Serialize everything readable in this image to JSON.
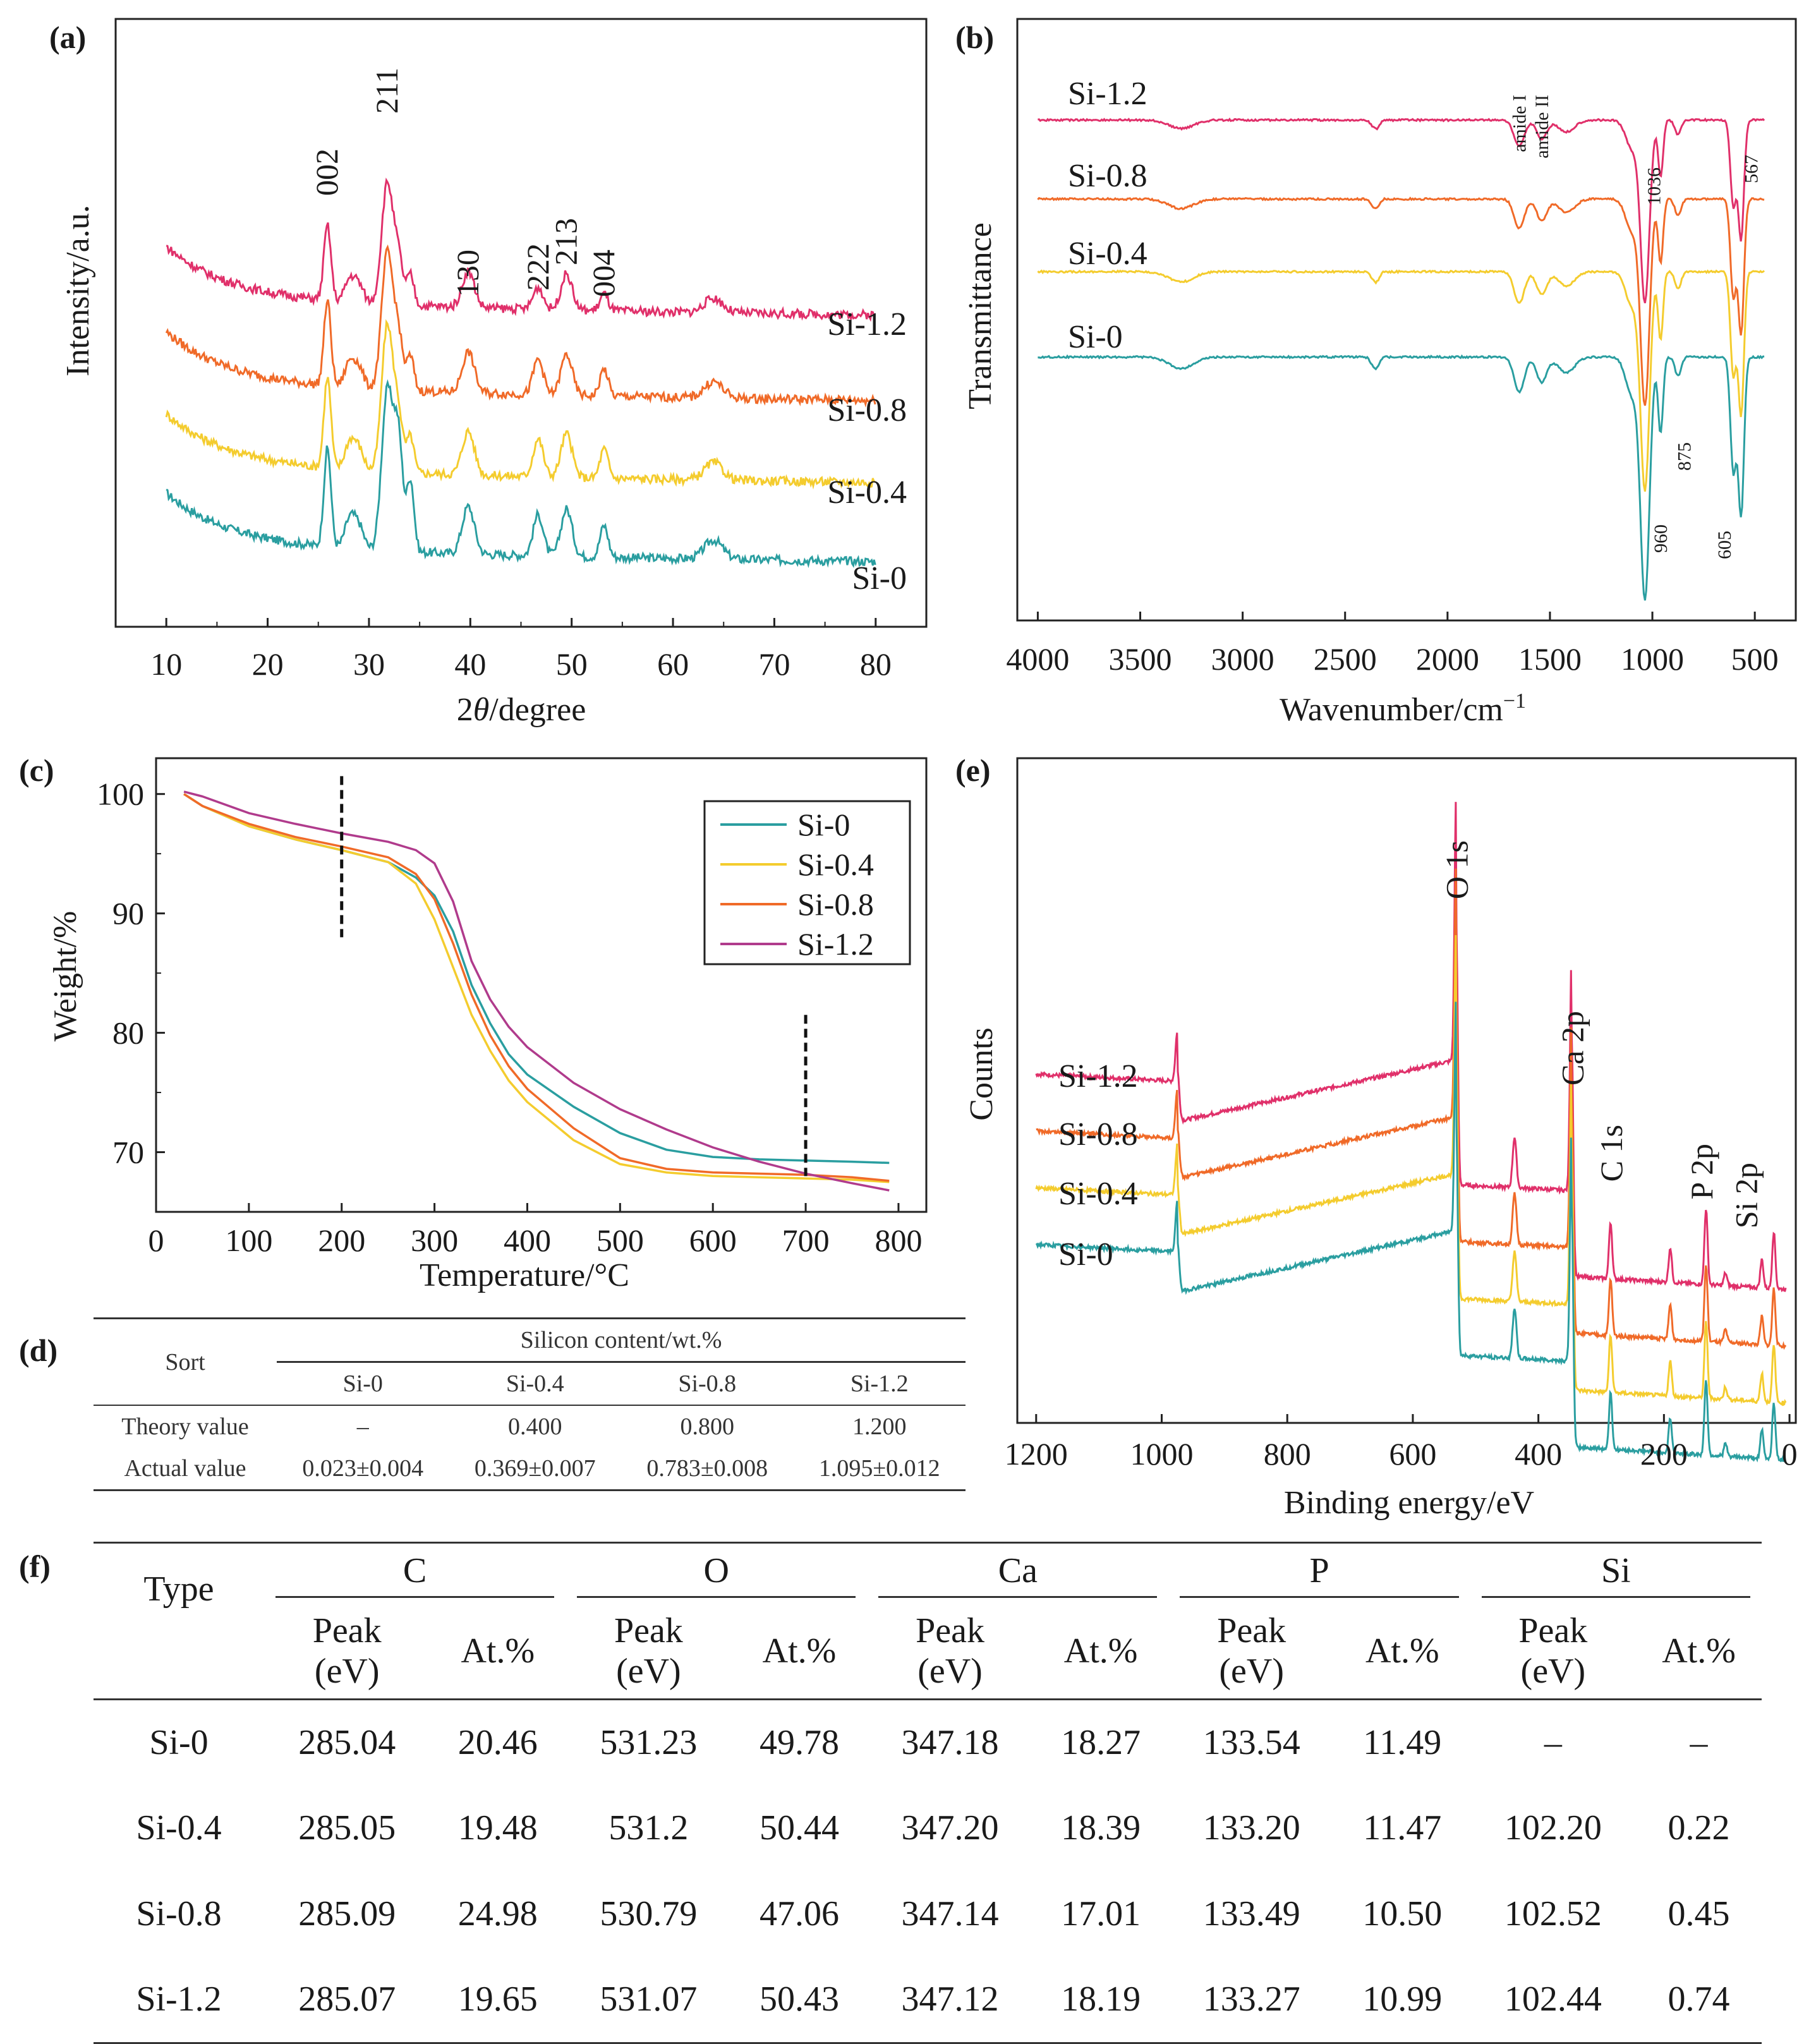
{
  "panel_labels": {
    "a": "(a)",
    "b": "(b)",
    "c": "(c)",
    "d": "(d)",
    "e": "(e)",
    "f": "(f)"
  },
  "colors": {
    "si0": "#2a9ea0",
    "si04": "#f4cc2e",
    "si08": "#f06a28",
    "si12": "#e0306a",
    "si12_tga": "#b03b8c"
  },
  "chart_data": [
    {
      "id": "a",
      "type": "line",
      "title": "",
      "xlabel": "2θ/degree",
      "xlabel_main": "2",
      "xlabel_italic": "θ",
      "xlabel_rest": "/degree",
      "ylabel": "Intensity/a.u.",
      "xlim": [
        5,
        85
      ],
      "xticks": [
        10,
        20,
        30,
        40,
        50,
        60,
        70,
        80
      ],
      "peak_positions": [
        25.9,
        31.8,
        39.8,
        46.7,
        49.5,
        53.2,
        64.0
      ],
      "peak_labels": [
        {
          "text": "002",
          "x": 25.9
        },
        {
          "text": "211",
          "x": 31.8
        },
        {
          "text": "130",
          "x": 39.8
        },
        {
          "text": "222",
          "x": 46.7
        },
        {
          "text": "213",
          "x": 49.5
        },
        {
          "text": "004",
          "x": 53.2
        }
      ],
      "series": [
        {
          "name": "Si-0",
          "color": "#2a9ea0"
        },
        {
          "name": "Si-0.4",
          "color": "#f4cc2e"
        },
        {
          "name": "Si-0.8",
          "color": "#f06a28"
        },
        {
          "name": "Si-1.2",
          "color": "#e0306a"
        }
      ]
    },
    {
      "id": "b",
      "type": "line",
      "xlabel": "Wavenumber/cm",
      "xlabel_sup": "−1",
      "ylabel": "Transmittance",
      "xlim": [
        4000,
        400
      ],
      "xticks": [
        4000,
        3500,
        3000,
        2500,
        2000,
        1500,
        1000,
        500
      ],
      "annotations": [
        {
          "text": "amide I",
          "x": 1650
        },
        {
          "text": "amide II",
          "x": 1540
        },
        {
          "text": "1036",
          "x": 1036
        },
        {
          "text": "567",
          "x": 567
        },
        {
          "text": "875",
          "x": 875
        },
        {
          "text": "960",
          "x": 960
        },
        {
          "text": "605",
          "x": 605
        }
      ],
      "series": [
        {
          "name": "Si-1.2",
          "color": "#e0306a"
        },
        {
          "name": "Si-0.8",
          "color": "#f06a28"
        },
        {
          "name": "Si-0.4",
          "color": "#f4cc2e"
        },
        {
          "name": "Si-0",
          "color": "#2a9ea0"
        }
      ]
    },
    {
      "id": "c",
      "type": "line",
      "xlabel": "Temperature/°C",
      "ylabel": "Weight/%",
      "xlim": [
        0,
        830
      ],
      "ylim": [
        65,
        103
      ],
      "xticks": [
        0,
        100,
        200,
        300,
        400,
        500,
        600,
        700,
        800
      ],
      "yticks": [
        70,
        80,
        90,
        100
      ],
      "vlines": [
        200,
        700
      ],
      "legend": "top-right",
      "series": [
        {
          "name": "Si-0",
          "color": "#2a9ea0",
          "x": [
            30,
            50,
            100,
            150,
            200,
            250,
            280,
            300,
            320,
            340,
            360,
            380,
            400,
            450,
            500,
            550,
            600,
            650,
            700,
            750,
            790
          ],
          "y": [
            100,
            99,
            97.3,
            96.2,
            95.3,
            94.3,
            93,
            91.5,
            88.5,
            84,
            80.8,
            78.2,
            76.5,
            73.8,
            71.6,
            70.2,
            69.6,
            69.4,
            69.3,
            69.2,
            69.1
          ]
        },
        {
          "name": "Si-0.4",
          "color": "#f4cc2e",
          "x": [
            30,
            50,
            100,
            150,
            200,
            250,
            280,
            300,
            320,
            340,
            360,
            380,
            400,
            450,
            500,
            550,
            600,
            650,
            700,
            750,
            790
          ],
          "y": [
            100,
            99,
            97.3,
            96.2,
            95.3,
            94.3,
            92.5,
            89.5,
            85.5,
            81.5,
            78.5,
            76,
            74.2,
            71,
            69,
            68.3,
            68,
            67.9,
            67.8,
            67.7,
            67.5
          ]
        },
        {
          "name": "Si-0.8",
          "color": "#f06a28",
          "x": [
            30,
            50,
            100,
            150,
            200,
            250,
            280,
            300,
            320,
            340,
            360,
            380,
            400,
            450,
            500,
            550,
            600,
            650,
            700,
            750,
            790
          ],
          "y": [
            100,
            99,
            97.5,
            96.4,
            95.6,
            94.7,
            93.3,
            91.2,
            87.5,
            83.2,
            79.8,
            77.2,
            75.3,
            72,
            69.5,
            68.6,
            68.3,
            68.2,
            68.1,
            67.9,
            67.6
          ]
        },
        {
          "name": "Si-1.2",
          "color": "#b03b8c",
          "x": [
            30,
            50,
            100,
            150,
            200,
            250,
            280,
            300,
            320,
            340,
            360,
            380,
            400,
            450,
            500,
            550,
            600,
            650,
            700,
            750,
            790
          ],
          "y": [
            100.2,
            99.8,
            98.4,
            97.5,
            96.7,
            96,
            95.3,
            94.2,
            91,
            86,
            82.8,
            80.5,
            78.8,
            75.8,
            73.6,
            71.9,
            70.4,
            69.2,
            68.2,
            67.4,
            66.8
          ]
        }
      ]
    },
    {
      "id": "e",
      "type": "line",
      "xlabel": "Binding energy/eV",
      "ylabel": "Counts",
      "xlim": [
        1230,
        -10
      ],
      "xticks": [
        1200,
        1000,
        800,
        600,
        400,
        200,
        0
      ],
      "peak_labels": [
        {
          "text": "O 1s",
          "x": 531
        },
        {
          "text": "Ca 2p",
          "x": 347
        },
        {
          "text": "C 1s",
          "x": 285
        },
        {
          "text": "P 2p",
          "x": 133
        },
        {
          "text": "Si 2p",
          "x": 102
        }
      ],
      "series": [
        {
          "name": "Si-1.2",
          "color": "#e0306a"
        },
        {
          "name": "Si-0.8",
          "color": "#f06a28"
        },
        {
          "name": "Si-0.4",
          "color": "#f4cc2e"
        },
        {
          "name": "Si-0",
          "color": "#2a9ea0"
        }
      ]
    }
  ],
  "table_d": {
    "sort_header": "Sort",
    "group_header": "Silicon content/wt.%",
    "columns": [
      "Si-0",
      "Si-0.4",
      "Si-0.8",
      "Si-1.2"
    ],
    "rows": [
      {
        "label": "Theory value",
        "cells": [
          "–",
          "0.400",
          "0.800",
          "1.200"
        ]
      },
      {
        "label": "Actual value",
        "cells": [
          "0.023±0.004",
          "0.369±0.007",
          "0.783±0.008",
          "1.095±0.012"
        ]
      }
    ]
  },
  "table_f": {
    "type_header": "Type",
    "elements": [
      "C",
      "O",
      "Ca",
      "P",
      "Si"
    ],
    "peak_label_1": "Peak",
    "peak_label_2": "(eV)",
    "at_label": "At.%",
    "rows": [
      {
        "type": "Si-0",
        "cells": [
          "285.04",
          "20.46",
          "531.23",
          "49.78",
          "347.18",
          "18.27",
          "133.54",
          "11.49",
          "–",
          "–"
        ]
      },
      {
        "type": "Si-0.4",
        "cells": [
          "285.05",
          "19.48",
          "531.2",
          "50.44",
          "347.20",
          "18.39",
          "133.20",
          "11.47",
          "102.20",
          "0.22"
        ]
      },
      {
        "type": "Si-0.8",
        "cells": [
          "285.09",
          "24.98",
          "530.79",
          "47.06",
          "347.14",
          "17.01",
          "133.49",
          "10.50",
          "102.52",
          "0.45"
        ]
      },
      {
        "type": "Si-1.2",
        "cells": [
          "285.07",
          "19.65",
          "531.07",
          "50.43",
          "347.12",
          "18.19",
          "133.27",
          "10.99",
          "102.44",
          "0.74"
        ]
      }
    ]
  }
}
